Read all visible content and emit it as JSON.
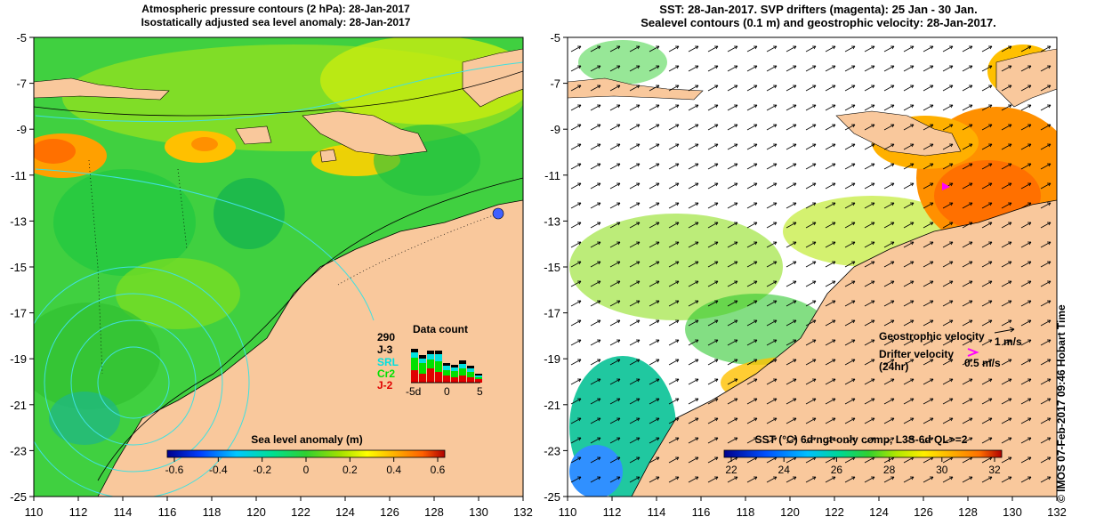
{
  "left_panel": {
    "title_line1": "Atmospheric pressure contours (2 hPa): 28-Jan-2017",
    "title_line2": "Isostatically adjusted sea level anomaly: 28-Jan-2017",
    "colorbar_title": "Sea level anomaly (m)",
    "colorbar_ticks": [
      "-0.6",
      "-0.4",
      "-0.2",
      "0",
      "0.2",
      "0.4",
      "0.6"
    ],
    "data_count": {
      "title": "Data count",
      "total": "290",
      "missions": [
        {
          "name": "J-3",
          "color": "#000000"
        },
        {
          "name": "SRL",
          "color": "#00e0e0"
        },
        {
          "name": "Cr2",
          "color": "#00e000"
        },
        {
          "name": "J-2",
          "color": "#e00000"
        }
      ],
      "axis_ticks": [
        "-5d",
        "0",
        "5"
      ]
    }
  },
  "right_panel": {
    "title_line1": "SST: 28-Jan-2017. SVP drifters (magenta): 25 Jan - 30 Jan.",
    "title_line2": "Sealevel contours (0.1 m) and geostrophic velocity: 28-Jan-2017.",
    "colorbar_title": "SST (°C) 6d ngt-only comp, L3S-6d QL>=2",
    "colorbar_ticks": [
      "22",
      "24",
      "26",
      "28",
      "30",
      "32"
    ],
    "legend": {
      "geostrophic_label": "Geostrophic velocity",
      "geostrophic_value": "1 m/s",
      "drifter_label": "Drifter velocity",
      "drifter_sublabel": "(24hr)",
      "drifter_value": "0.5 m/s"
    }
  },
  "axes": {
    "x_ticks": [
      "110",
      "112",
      "114",
      "116",
      "118",
      "120",
      "122",
      "124",
      "126",
      "128",
      "130",
      "132"
    ],
    "y_ticks": [
      "-5",
      "-7",
      "-9",
      "-11",
      "-13",
      "-15",
      "-17",
      "-19",
      "-21",
      "-23",
      "-25"
    ]
  },
  "credit": "© IMOS 07-Feb-2017 09:46 Hobart Time",
  "colors": {
    "land": "#f9c89c",
    "sla_colorbar": [
      "#00008c",
      "#0040ff",
      "#00c8ff",
      "#00e090",
      "#30d030",
      "#a0e000",
      "#ffff00",
      "#ffb000",
      "#ff6000",
      "#b00000"
    ],
    "sst_colorbar": [
      "#00008c",
      "#0050ff",
      "#00c0ff",
      "#00d890",
      "#30d030",
      "#b0e800",
      "#ffee00",
      "#ffb000",
      "#ff7000",
      "#b00000"
    ],
    "drifter": "#ff00ff"
  }
}
